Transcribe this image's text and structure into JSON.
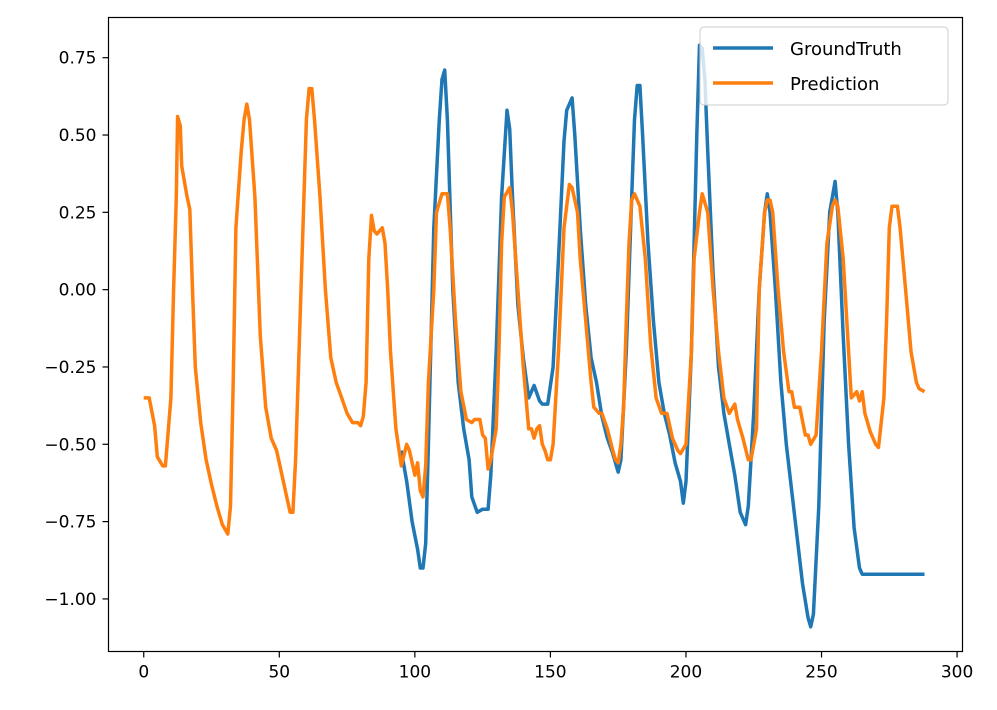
{
  "chart_data": {
    "type": "line",
    "title": "",
    "xlabel": "",
    "ylabel": "",
    "xlim": [
      -13,
      302
    ],
    "ylim": [
      -1.17,
      0.88
    ],
    "xticks": [
      0,
      50,
      100,
      150,
      200,
      250,
      300
    ],
    "xtick_labels": [
      "0",
      "50",
      "100",
      "150",
      "200",
      "250",
      "300"
    ],
    "yticks": [
      0.75,
      0.5,
      0.25,
      0.0,
      -0.25,
      -0.5,
      -0.75,
      -1.0
    ],
    "ytick_labels": [
      "0.75",
      "0.50",
      "0.25",
      "0.00",
      "−0.25",
      "−0.50",
      "−0.75",
      "−1.00"
    ],
    "grid": false,
    "legend_position": "top-right",
    "series": [
      {
        "name": "GroundTruth",
        "color": "#1f77b4",
        "points": [
          [
            95,
            -0.52
          ],
          [
            97,
            -0.62
          ],
          [
            99,
            -0.75
          ],
          [
            101,
            -0.84
          ],
          [
            102,
            -0.9
          ],
          [
            103,
            -0.9
          ],
          [
            104,
            -0.82
          ],
          [
            105,
            -0.5
          ],
          [
            107,
            0.2
          ],
          [
            109,
            0.55
          ],
          [
            110,
            0.68
          ],
          [
            111,
            0.71
          ],
          [
            112,
            0.55
          ],
          [
            114,
            0.0
          ],
          [
            116,
            -0.3
          ],
          [
            118,
            -0.45
          ],
          [
            120,
            -0.55
          ],
          [
            121,
            -0.67
          ],
          [
            123,
            -0.72
          ],
          [
            125,
            -0.71
          ],
          [
            127,
            -0.71
          ],
          [
            128,
            -0.6
          ],
          [
            130,
            -0.2
          ],
          [
            132,
            0.3
          ],
          [
            134,
            0.58
          ],
          [
            135,
            0.52
          ],
          [
            136,
            0.3
          ],
          [
            138,
            -0.05
          ],
          [
            140,
            -0.22
          ],
          [
            142,
            -0.35
          ],
          [
            144,
            -0.31
          ],
          [
            146,
            -0.36
          ],
          [
            147,
            -0.37
          ],
          [
            149,
            -0.37
          ],
          [
            151,
            -0.25
          ],
          [
            153,
            0.1
          ],
          [
            155,
            0.48
          ],
          [
            156,
            0.58
          ],
          [
            158,
            0.62
          ],
          [
            159,
            0.5
          ],
          [
            161,
            0.2
          ],
          [
            163,
            -0.05
          ],
          [
            165,
            -0.22
          ],
          [
            167,
            -0.3
          ],
          [
            169,
            -0.41
          ],
          [
            171,
            -0.48
          ],
          [
            173,
            -0.53
          ],
          [
            175,
            -0.59
          ],
          [
            176,
            -0.55
          ],
          [
            178,
            -0.2
          ],
          [
            180,
            0.3
          ],
          [
            181,
            0.55
          ],
          [
            182,
            0.66
          ],
          [
            183,
            0.66
          ],
          [
            184,
            0.5
          ],
          [
            186,
            0.15
          ],
          [
            188,
            -0.1
          ],
          [
            190,
            -0.3
          ],
          [
            192,
            -0.4
          ],
          [
            194,
            -0.47
          ],
          [
            196,
            -0.56
          ],
          [
            198,
            -0.62
          ],
          [
            199,
            -0.69
          ],
          [
            200,
            -0.62
          ],
          [
            202,
            -0.2
          ],
          [
            204,
            0.5
          ],
          [
            205,
            0.79
          ],
          [
            206,
            0.78
          ],
          [
            207,
            0.68
          ],
          [
            208,
            0.45
          ],
          [
            210,
            0.05
          ],
          [
            212,
            -0.25
          ],
          [
            214,
            -0.4
          ],
          [
            216,
            -0.5
          ],
          [
            218,
            -0.6
          ],
          [
            220,
            -0.72
          ],
          [
            222,
            -0.76
          ],
          [
            223,
            -0.7
          ],
          [
            225,
            -0.4
          ],
          [
            227,
            0.0
          ],
          [
            229,
            0.25
          ],
          [
            230,
            0.31
          ],
          [
            231,
            0.25
          ],
          [
            233,
            0.0
          ],
          [
            235,
            -0.3
          ],
          [
            237,
            -0.5
          ],
          [
            239,
            -0.65
          ],
          [
            241,
            -0.8
          ],
          [
            243,
            -0.95
          ],
          [
            245,
            -1.06
          ],
          [
            246,
            -1.09
          ],
          [
            247,
            -1.05
          ],
          [
            249,
            -0.7
          ],
          [
            251,
            -0.1
          ],
          [
            253,
            0.25
          ],
          [
            255,
            0.35
          ],
          [
            256,
            0.25
          ],
          [
            258,
            -0.15
          ],
          [
            260,
            -0.5
          ],
          [
            262,
            -0.77
          ],
          [
            264,
            -0.9
          ],
          [
            265,
            -0.92
          ],
          [
            270,
            -0.92
          ],
          [
            280,
            -0.92
          ],
          [
            288,
            -0.92
          ]
        ]
      },
      {
        "name": "Prediction",
        "color": "#ff7f0e",
        "points": [
          [
            0,
            -0.35
          ],
          [
            2,
            -0.35
          ],
          [
            4,
            -0.44
          ],
          [
            5,
            -0.54
          ],
          [
            7,
            -0.57
          ],
          [
            8,
            -0.57
          ],
          [
            10,
            -0.35
          ],
          [
            11,
            0.0
          ],
          [
            12,
            0.3
          ],
          [
            12.5,
            0.56
          ],
          [
            13.5,
            0.53
          ],
          [
            14,
            0.4
          ],
          [
            16,
            0.3
          ],
          [
            17,
            0.26
          ],
          [
            18,
            0.0
          ],
          [
            19,
            -0.25
          ],
          [
            21,
            -0.43
          ],
          [
            23,
            -0.55
          ],
          [
            25,
            -0.63
          ],
          [
            27,
            -0.7
          ],
          [
            29,
            -0.76
          ],
          [
            31,
            -0.79
          ],
          [
            32,
            -0.7
          ],
          [
            33,
            -0.3
          ],
          [
            34,
            0.2
          ],
          [
            36,
            0.45
          ],
          [
            37,
            0.55
          ],
          [
            38,
            0.6
          ],
          [
            39,
            0.55
          ],
          [
            41,
            0.3
          ],
          [
            43,
            -0.15
          ],
          [
            45,
            -0.38
          ],
          [
            47,
            -0.48
          ],
          [
            49,
            -0.52
          ],
          [
            51,
            -0.6
          ],
          [
            53,
            -0.68
          ],
          [
            54,
            -0.72
          ],
          [
            55,
            -0.72
          ],
          [
            56,
            -0.55
          ],
          [
            58,
            0.0
          ],
          [
            60,
            0.55
          ],
          [
            61,
            0.65
          ],
          [
            62,
            0.65
          ],
          [
            63,
            0.55
          ],
          [
            65,
            0.3
          ],
          [
            67,
            0.0
          ],
          [
            69,
            -0.22
          ],
          [
            71,
            -0.3
          ],
          [
            73,
            -0.35
          ],
          [
            75,
            -0.4
          ],
          [
            77,
            -0.43
          ],
          [
            79,
            -0.43
          ],
          [
            80,
            -0.44
          ],
          [
            81,
            -0.41
          ],
          [
            82,
            -0.3
          ],
          [
            83,
            0.1
          ],
          [
            84,
            0.24
          ],
          [
            85,
            0.19
          ],
          [
            86,
            0.18
          ],
          [
            87,
            0.19
          ],
          [
            88,
            0.2
          ],
          [
            89,
            0.15
          ],
          [
            90,
            0.0
          ],
          [
            91,
            -0.2
          ],
          [
            93,
            -0.45
          ],
          [
            95,
            -0.57
          ],
          [
            97,
            -0.5
          ],
          [
            98,
            -0.52
          ],
          [
            100,
            -0.6
          ],
          [
            101,
            -0.56
          ],
          [
            102,
            -0.65
          ],
          [
            103,
            -0.67
          ],
          [
            104,
            -0.57
          ],
          [
            105,
            -0.3
          ],
          [
            107,
            0.0
          ],
          [
            108,
            0.25
          ],
          [
            110,
            0.31
          ],
          [
            112,
            0.31
          ],
          [
            113,
            0.2
          ],
          [
            115,
            -0.1
          ],
          [
            117,
            -0.33
          ],
          [
            119,
            -0.42
          ],
          [
            121,
            -0.43
          ],
          [
            122,
            -0.42
          ],
          [
            124,
            -0.42
          ],
          [
            125,
            -0.47
          ],
          [
            126,
            -0.48
          ],
          [
            127,
            -0.58
          ],
          [
            128,
            -0.55
          ],
          [
            130,
            -0.45
          ],
          [
            131,
            -0.2
          ],
          [
            132,
            0.15
          ],
          [
            133,
            0.3
          ],
          [
            135,
            0.33
          ],
          [
            136,
            0.25
          ],
          [
            138,
            0.0
          ],
          [
            140,
            -0.25
          ],
          [
            142,
            -0.45
          ],
          [
            143,
            -0.45
          ],
          [
            144,
            -0.48
          ],
          [
            145,
            -0.45
          ],
          [
            146,
            -0.44
          ],
          [
            147,
            -0.5
          ],
          [
            148,
            -0.52
          ],
          [
            149,
            -0.55
          ],
          [
            150,
            -0.55
          ],
          [
            151,
            -0.5
          ],
          [
            153,
            -0.2
          ],
          [
            155,
            0.2
          ],
          [
            157,
            0.34
          ],
          [
            158,
            0.33
          ],
          [
            160,
            0.25
          ],
          [
            161,
            0.1
          ],
          [
            163,
            -0.1
          ],
          [
            165,
            -0.3
          ],
          [
            166,
            -0.38
          ],
          [
            168,
            -0.4
          ],
          [
            169,
            -0.4
          ],
          [
            171,
            -0.45
          ],
          [
            173,
            -0.52
          ],
          [
            174,
            -0.55
          ],
          [
            175,
            -0.56
          ],
          [
            176,
            -0.5
          ],
          [
            177,
            -0.38
          ],
          [
            178,
            -0.1
          ],
          [
            179,
            0.15
          ],
          [
            180,
            0.29
          ],
          [
            181,
            0.31
          ],
          [
            183,
            0.27
          ],
          [
            185,
            0.1
          ],
          [
            187,
            -0.18
          ],
          [
            189,
            -0.35
          ],
          [
            191,
            -0.4
          ],
          [
            193,
            -0.4
          ],
          [
            195,
            -0.48
          ],
          [
            197,
            -0.52
          ],
          [
            198,
            -0.53
          ],
          [
            200,
            -0.5
          ],
          [
            202,
            -0.2
          ],
          [
            203,
            0.1
          ],
          [
            205,
            0.25
          ],
          [
            206,
            0.31
          ],
          [
            208,
            0.25
          ],
          [
            210,
            0.0
          ],
          [
            212,
            -0.2
          ],
          [
            214,
            -0.35
          ],
          [
            216,
            -0.4
          ],
          [
            218,
            -0.37
          ],
          [
            219,
            -0.42
          ],
          [
            221,
            -0.48
          ],
          [
            223,
            -0.55
          ],
          [
            224,
            -0.55
          ],
          [
            226,
            -0.45
          ],
          [
            227,
            0.0
          ],
          [
            229,
            0.25
          ],
          [
            230,
            0.29
          ],
          [
            231,
            0.29
          ],
          [
            232,
            0.25
          ],
          [
            234,
            0.0
          ],
          [
            236,
            -0.2
          ],
          [
            238,
            -0.33
          ],
          [
            239,
            -0.33
          ],
          [
            240,
            -0.38
          ],
          [
            242,
            -0.38
          ],
          [
            244,
            -0.47
          ],
          [
            245,
            -0.47
          ],
          [
            246,
            -0.5
          ],
          [
            248,
            -0.47
          ],
          [
            250,
            -0.2
          ],
          [
            252,
            0.15
          ],
          [
            254,
            0.27
          ],
          [
            255,
            0.29
          ],
          [
            256,
            0.27
          ],
          [
            258,
            0.1
          ],
          [
            260,
            -0.2
          ],
          [
            261,
            -0.35
          ],
          [
            263,
            -0.33
          ],
          [
            264,
            -0.36
          ],
          [
            265,
            -0.33
          ],
          [
            266,
            -0.4
          ],
          [
            268,
            -0.46
          ],
          [
            269,
            -0.48
          ],
          [
            270,
            -0.5
          ],
          [
            271,
            -0.51
          ],
          [
            273,
            -0.35
          ],
          [
            274,
            -0.1
          ],
          [
            275,
            0.2
          ],
          [
            276,
            0.27
          ],
          [
            278,
            0.27
          ],
          [
            279,
            0.2
          ],
          [
            281,
            0.0
          ],
          [
            283,
            -0.2
          ],
          [
            285,
            -0.3
          ],
          [
            286,
            -0.32
          ],
          [
            288,
            -0.33
          ]
        ]
      }
    ]
  }
}
